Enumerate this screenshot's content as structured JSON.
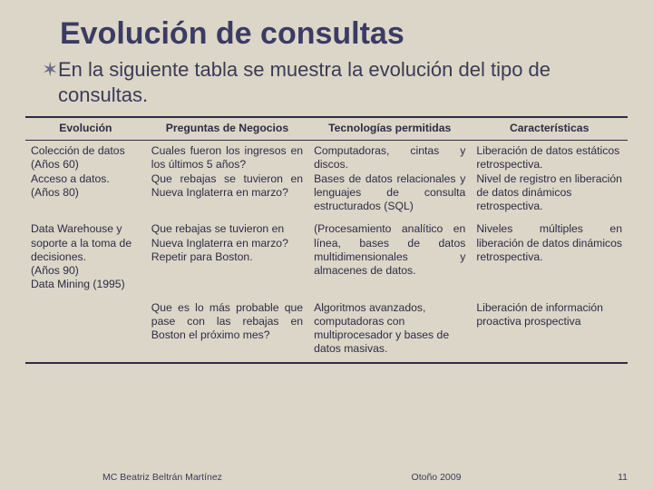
{
  "title": "Evolución de consultas",
  "intro": "En la siguiente tabla se muestra la evolución del tipo de consultas.",
  "bullet_glyph": "✶",
  "table": {
    "headers": [
      "Evolución",
      "Preguntas de Negocios",
      "Tecnologías permitidas",
      "Características"
    ],
    "rows": [
      {
        "c1": "Colección de datos (Años 60)\nAcceso a datos. (Años 80)",
        "c2": "Cuales fueron los ingresos en los últimos 5 años?\nQue rebajas se tuvieron en Nueva Inglaterra en marzo?",
        "c3": "Computadoras, cintas y discos.\nBases de datos relacionales y lenguajes de consulta estructurados (SQL)",
        "c4": "Liberación de datos estáticos retrospectiva.\nNivel de registro en liberación de datos dinámicos retrospectiva."
      },
      {
        "c1": "Data Warehouse y soporte a la toma de decisiones.\n(Años 90)\nData Mining (1995)",
        "c2": "Que rebajas se tuvieron en Nueva Inglaterra en marzo? Repetir para Boston.",
        "c3": "(Procesamiento analítico en línea, bases de datos multidimensionales y almacenes de datos.",
        "c4": "Niveles múltiples en liberación de datos dinámicos retrospectiva."
      },
      {
        "c1": "",
        "c2": "Que es lo más probable que pase con las rebajas en Boston el próximo mes?",
        "c3": "Algoritmos avanzados, computadoras con multiprocesador y bases de datos masivas.",
        "c4": "Liberación de información proactiva prospectiva"
      }
    ]
  },
  "footer": {
    "center": "MC Beatriz Beltrán Martínez",
    "left": "Otoño 2009",
    "page": "11"
  },
  "colors": {
    "background": "#dcd6c8",
    "text": "#3a3a52",
    "rule": "#2c2c44"
  }
}
